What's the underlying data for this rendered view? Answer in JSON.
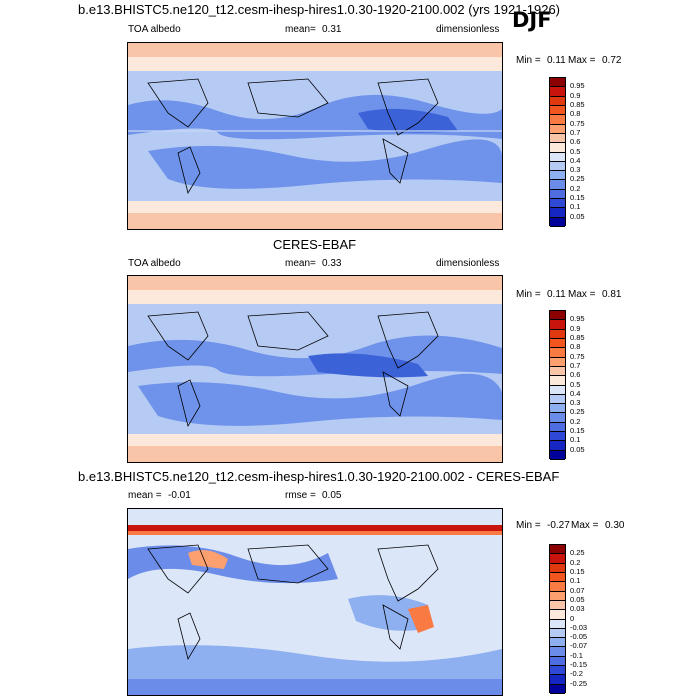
{
  "season": "DJF",
  "panels": [
    {
      "title": "b.e13.BHISTC5.ne120_t12.cesm-ihesp-hires1.0.30-1920-2100.002 (yrs 1921-1926)",
      "left_label": "TOA albedo",
      "mean_label": "mean=",
      "mean_value": "0.31",
      "units": "dimensionless",
      "min_label": "Min =",
      "min_value": "0.11",
      "max_label": "Max =",
      "max_value": "0.72",
      "colorbar": {
        "labels": [
          "0.95",
          "0.9",
          "0.85",
          "0.8",
          "0.75",
          "0.7",
          "0.6",
          "0.5",
          "0.4",
          "0.3",
          "0.25",
          "0.2",
          "0.15",
          "0.1",
          "0.05"
        ],
        "colors": [
          "#8b0000",
          "#c8140c",
          "#e0380f",
          "#f2561e",
          "#fa7a44",
          "#fda070",
          "#f9c5a8",
          "#fde8dc",
          "#dbe6f8",
          "#b6cbf4",
          "#8eaff0",
          "#6b8ce8",
          "#4d6de0",
          "#2f49d6",
          "#1626c2",
          "#00009a"
        ]
      },
      "chart_data": {
        "type": "heatmap",
        "field": "TOA albedo",
        "season": "DJF",
        "mean": 0.31,
        "min": 0.11,
        "max": 0.72,
        "units": "dimensionless",
        "levels": [
          0.05,
          0.1,
          0.15,
          0.2,
          0.25,
          0.3,
          0.4,
          0.5,
          0.6,
          0.7,
          0.75,
          0.8,
          0.85,
          0.9,
          0.95
        ]
      }
    },
    {
      "title": "CERES-EBAF",
      "left_label": "TOA albedo",
      "mean_label": "mean=",
      "mean_value": "0.33",
      "units": "dimensionless",
      "min_label": "Min =",
      "min_value": "0.11",
      "max_label": "Max =",
      "max_value": "0.81",
      "colorbar": {
        "labels": [
          "0.95",
          "0.9",
          "0.85",
          "0.8",
          "0.75",
          "0.7",
          "0.6",
          "0.5",
          "0.4",
          "0.3",
          "0.25",
          "0.2",
          "0.15",
          "0.1",
          "0.05"
        ],
        "colors": [
          "#8b0000",
          "#c8140c",
          "#e0380f",
          "#f2561e",
          "#fa7a44",
          "#fda070",
          "#f9c5a8",
          "#fde8dc",
          "#dbe6f8",
          "#b6cbf4",
          "#8eaff0",
          "#6b8ce8",
          "#4d6de0",
          "#2f49d6",
          "#1626c2",
          "#00009a"
        ]
      },
      "chart_data": {
        "type": "heatmap",
        "field": "TOA albedo",
        "season": "DJF",
        "mean": 0.33,
        "min": 0.11,
        "max": 0.81,
        "units": "dimensionless",
        "levels": [
          0.05,
          0.1,
          0.15,
          0.2,
          0.25,
          0.3,
          0.4,
          0.5,
          0.6,
          0.7,
          0.75,
          0.8,
          0.85,
          0.9,
          0.95
        ]
      }
    },
    {
      "title": "b.e13.BHISTC5.ne120_t12.cesm-ihesp-hires1.0.30-1920-2100.002 - CERES-EBAF",
      "left_label": "mean =",
      "mean_label": "",
      "mean_value": "-0.01",
      "rmse_label": "rmse =",
      "rmse_value": "0.05",
      "units": "",
      "min_label": "Min =",
      "min_value": "-0.27",
      "max_label": "Max =",
      "max_value": "0.30",
      "colorbar": {
        "labels": [
          "0.25",
          "0.2",
          "0.15",
          "0.1",
          "0.07",
          "0.05",
          "0.03",
          "0",
          "-0.03",
          "-0.05",
          "-0.07",
          "-0.1",
          "-0.15",
          "-0.2",
          "-0.25"
        ],
        "colors": [
          "#8b0000",
          "#c8140c",
          "#e0380f",
          "#f2561e",
          "#fa7a44",
          "#fda070",
          "#f9c5a8",
          "#fde8dc",
          "#dbe6f8",
          "#b6cbf4",
          "#8eaff0",
          "#6b8ce8",
          "#4d6de0",
          "#2f49d6",
          "#1626c2",
          "#00009a"
        ]
      },
      "chart_data": {
        "type": "heatmap",
        "field": "TOA albedo difference",
        "season": "DJF",
        "mean": -0.01,
        "rmse": 0.05,
        "min": -0.27,
        "max": 0.3,
        "levels": [
          -0.25,
          -0.2,
          -0.15,
          -0.1,
          -0.07,
          -0.05,
          -0.03,
          0,
          0.03,
          0.05,
          0.07,
          0.1,
          0.15,
          0.2,
          0.25
        ]
      }
    }
  ],
  "colors": {
    "ocean_low": "#6f93ea",
    "ocean_mid": "#b6cbf4",
    "high": "#f9c5a8",
    "very_high": "#fde8dc",
    "diff_neutral": "#dbe6f8"
  }
}
